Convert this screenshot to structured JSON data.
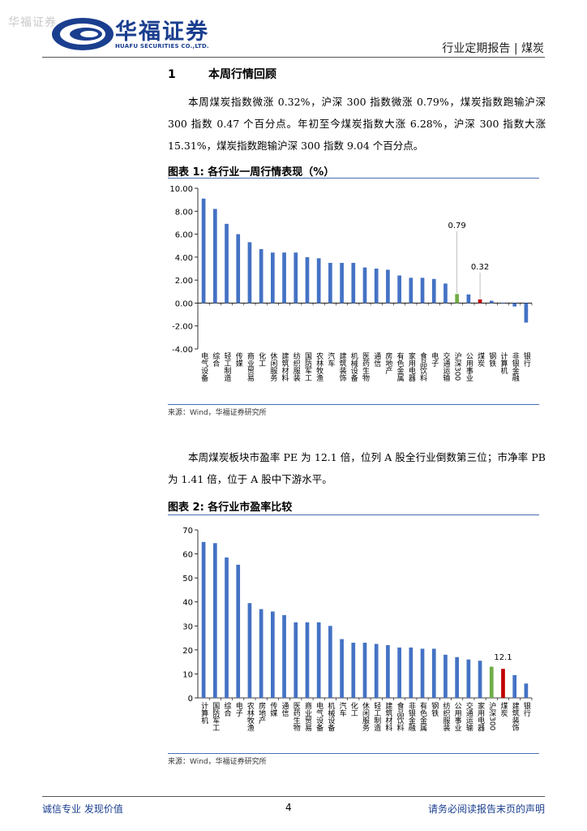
{
  "header": {
    "watermark": "华福证券",
    "brand_cn": "华福证券",
    "brand_en": "HUAFU SECURITIES CO.,LTD.",
    "report_type": "行业定期报告 | 煤炭"
  },
  "section": {
    "number": "1",
    "title": "本周行情回顾"
  },
  "paragraphs": [
    "本周煤炭指数微涨 0.32%，沪深 300 指数微涨 0.79%，煤炭指数跑输沪深 300 指数 0.47 个百分点。年初至今煤炭指数大涨 6.28%，沪深 300 指数大涨 15.31%，煤炭指数跑输沪深 300 指数 9.04 个百分点。",
    "本周煤炭板块市盈率 PE 为 12.1 倍，位列 A 股全行业倒数第三位；市净率 PB 为 1.41 倍，位于 A 股中下游水平。"
  ],
  "figures": [
    {
      "title": "图表 1:  各行业一周行情表现（%）",
      "source": "来源：Wind，华福证券研究所"
    },
    {
      "title": "图表 2:  各行业市盈率比较",
      "source": "来源：Wind，华福证券研究所"
    }
  ],
  "chart_data": [
    {
      "type": "bar",
      "categories": [
        "电气设备",
        "综合",
        "轻工制造",
        "传媒",
        "商业贸易",
        "化工",
        "休闲服务",
        "建筑材料",
        "纺织服装",
        "国防军工",
        "农林牧渔",
        "汽车",
        "建筑装饰",
        "机械设备",
        "医药生物",
        "通信",
        "房地产",
        "有色金属",
        "家用电器",
        "食品饮料",
        "电子",
        "交通运输",
        "沪深300",
        "公用事业",
        "煤炭",
        "钢铁",
        "计算机",
        "非银金融",
        "银行"
      ],
      "values": [
        9.1,
        8.2,
        6.9,
        6.0,
        5.3,
        4.7,
        4.4,
        4.4,
        4.4,
        4.0,
        3.9,
        3.5,
        3.5,
        3.5,
        3.1,
        3.0,
        2.9,
        2.4,
        2.2,
        2.2,
        2.1,
        1.7,
        0.79,
        0.75,
        0.32,
        0.2,
        -0.05,
        -0.3,
        -1.7
      ],
      "annotations": [
        "0.79",
        "0.32"
      ],
      "ylim": [
        -4,
        10
      ],
      "yticks": [
        "-4.00",
        "-2.00",
        "0.00",
        "2.00",
        "4.00",
        "6.00",
        "8.00",
        "10.00"
      ],
      "colors": {
        "default": "#4472c4",
        "hs300": "#70ad47",
        "coal": "#c00000"
      },
      "highlight_index": {
        "hs300": 22,
        "coal": 24
      }
    },
    {
      "type": "bar",
      "categories": [
        "计算机",
        "国防军工",
        "综合",
        "电子",
        "农林牧渔",
        "房地产",
        "传媒",
        "通信",
        "医药生物",
        "商业贸易",
        "电气设备",
        "机械设备",
        "汽车",
        "化工",
        "休闲服务",
        "轻工制造",
        "建筑材料",
        "食品饮料",
        "非银金融",
        "有色金属",
        "钢铁",
        "纺织服装",
        "公用事业",
        "交通运输",
        "家用电器",
        "沪深300",
        "煤炭",
        "建筑装饰",
        "银行"
      ],
      "values": [
        65,
        64.5,
        58.5,
        55.5,
        39.5,
        37,
        36,
        34.5,
        31.5,
        31.5,
        31.5,
        30,
        24.5,
        23,
        23,
        22.5,
        22,
        21,
        21,
        20.5,
        20.5,
        18,
        17,
        16,
        15.5,
        13,
        12.1,
        9.5,
        6
      ],
      "annotations": [
        "12.1"
      ],
      "ylim": [
        0,
        70
      ],
      "yticks": [
        "0",
        "10",
        "20",
        "30",
        "40",
        "50",
        "60",
        "70"
      ],
      "colors": {
        "default": "#4472c4",
        "hs300": "#70ad47",
        "coal": "#c00000"
      },
      "highlight_index": {
        "hs300": 25,
        "coal": 26
      }
    }
  ],
  "footer": {
    "left": "诚信专业  发现价值",
    "page": "4",
    "right": "请务必阅读报告末页的声明"
  }
}
